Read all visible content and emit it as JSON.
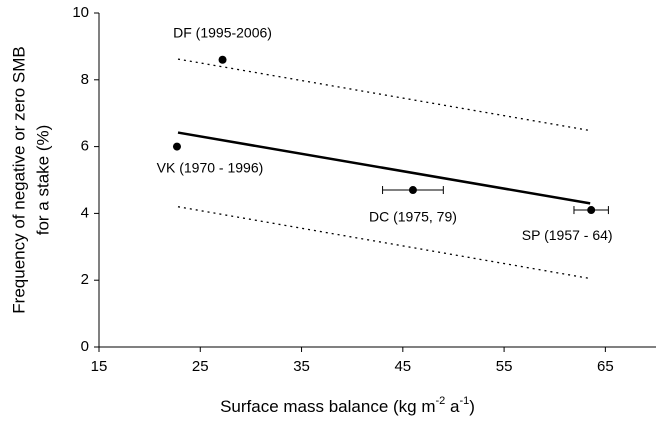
{
  "chart_data": {
    "type": "scatter",
    "x_label": [
      "Surface mass balance (kg m",
      "-2",
      " a",
      "-1",
      ")"
    ],
    "y_label": [
      "Frequency of negative or zero SMB",
      "for a stake (%)"
    ],
    "x": [
      27.2,
      22.7,
      46,
      63.6
    ],
    "values": [
      8.6,
      6.0,
      4.7,
      4.1
    ],
    "xerr": [
      null,
      null,
      3,
      1.7
    ],
    "point_labels": [
      "DF (1995-2006)",
      "VK (1970 - 1996)",
      "DC (1975, 79)",
      "SP (1957 - 64)"
    ],
    "color": "#000000",
    "fit": {
      "x": [
        22.8,
        63.5
      ],
      "y": [
        6.42,
        4.3
      ]
    },
    "upper": {
      "x": [
        22.8,
        63.5
      ],
      "y": [
        8.62,
        6.48
      ]
    },
    "lower": {
      "x": [
        22.8,
        63.5
      ],
      "y": [
        4.2,
        2.05
      ]
    },
    "xlim": [
      15,
      70
    ],
    "ylim": [
      0,
      10
    ],
    "xticks": [
      15,
      25,
      35,
      45,
      55,
      65
    ],
    "yticks": [
      0,
      2,
      4,
      6,
      8,
      10
    ],
    "grid": false
  }
}
